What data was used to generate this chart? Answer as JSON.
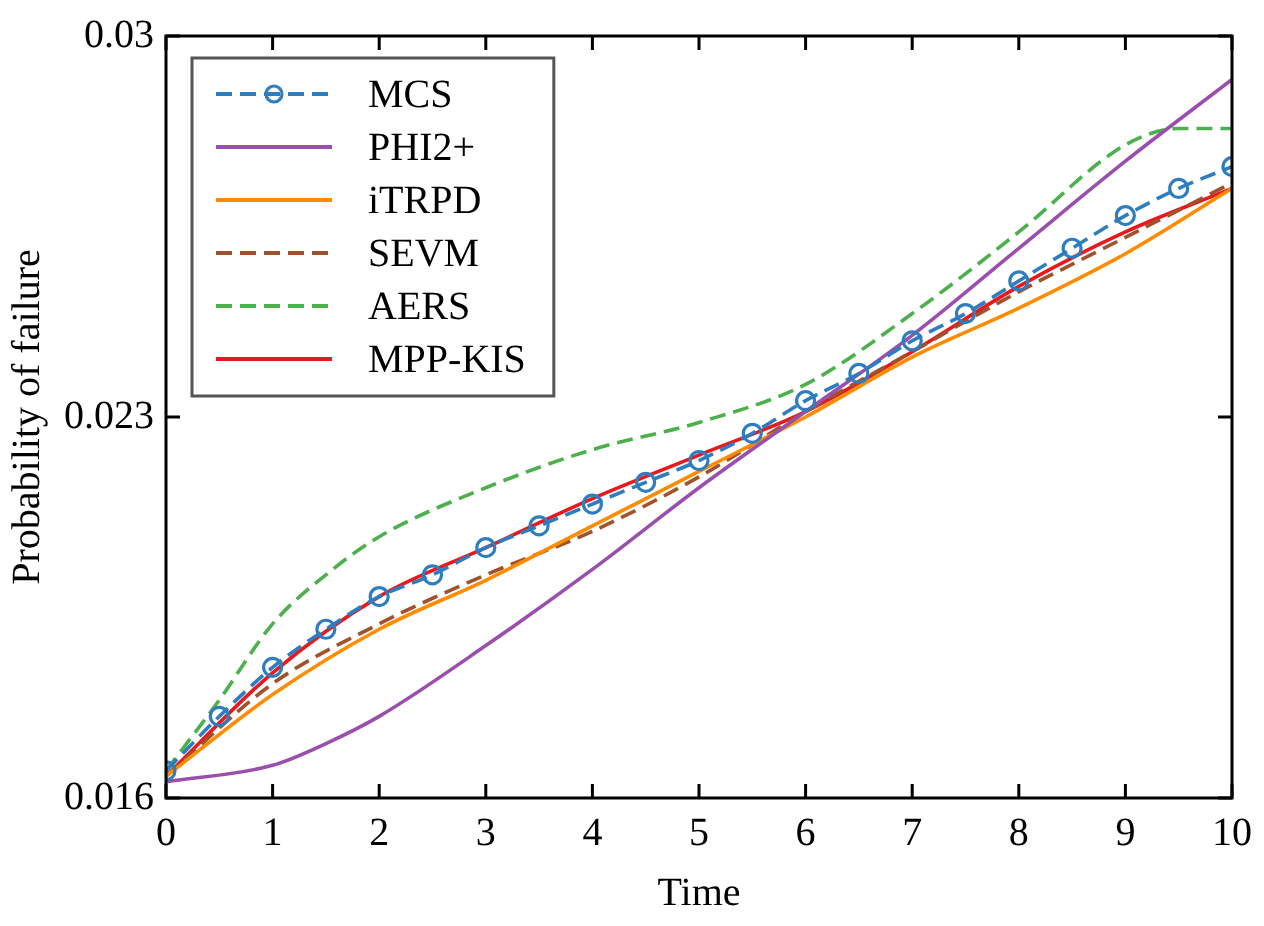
{
  "chart_data": {
    "type": "line",
    "xlabel": "Time",
    "ylabel": "Probability of failure",
    "xlim": [
      0,
      10
    ],
    "xticks": [
      0,
      1,
      2,
      3,
      4,
      5,
      6,
      7,
      8,
      9,
      10
    ],
    "ylim": [
      0.016,
      0.03
    ],
    "yticks": [
      0.016,
      0.023,
      0.03
    ],
    "grid": false,
    "legend": "top left",
    "series": [
      {
        "name": "MCS",
        "color": "#2e7ebf",
        "line_style": "dashed",
        "marker": "circle",
        "x": [
          0,
          0.5,
          1,
          1.5,
          2,
          2.5,
          3,
          3.5,
          4,
          4.5,
          5,
          5.5,
          6,
          6.5,
          7,
          7.5,
          8,
          8.5,
          9,
          9.5,
          10
        ],
        "values": [
          0.0165,
          0.0175,
          0.0184,
          0.0191,
          0.0197,
          0.0201,
          0.0206,
          0.021,
          0.0214,
          0.0218,
          0.0222,
          0.0227,
          0.0233,
          0.0238,
          0.0244,
          0.0249,
          0.0255,
          0.0261,
          0.0267,
          0.0272,
          0.0276
        ]
      },
      {
        "name": "PHI2+",
        "color": "#9b4fad",
        "line_style": "solid",
        "marker": "none",
        "x": [
          0,
          1,
          1.5,
          2,
          3,
          4,
          5,
          6,
          7,
          8,
          9,
          10
        ],
        "values": [
          0.0163,
          0.0166,
          0.017,
          0.0175,
          0.0188,
          0.0202,
          0.0217,
          0.0231,
          0.0245,
          0.0261,
          0.0277,
          0.0292
        ]
      },
      {
        "name": "iTRPD",
        "color": "#ff8c00",
        "line_style": "solid",
        "marker": "none",
        "x": [
          0,
          1,
          2,
          3,
          4,
          5,
          6,
          7,
          8,
          9,
          10
        ],
        "values": [
          0.0164,
          0.0179,
          0.0191,
          0.02,
          0.021,
          0.022,
          0.023,
          0.0241,
          0.025,
          0.026,
          0.0272
        ]
      },
      {
        "name": "SEVM",
        "color": "#a0522d",
        "line_style": "dashed",
        "marker": "none",
        "x": [
          0,
          1,
          2,
          3,
          4,
          5,
          6,
          7,
          8,
          9,
          10
        ],
        "values": [
          0.0164,
          0.0181,
          0.0192,
          0.0201,
          0.0209,
          0.0219,
          0.0231,
          0.0242,
          0.0253,
          0.0263,
          0.0273
        ]
      },
      {
        "name": "AERS",
        "color": "#4cb04c",
        "line_style": "dashed",
        "marker": "none",
        "x": [
          0,
          0.5,
          1,
          1.5,
          2,
          3,
          4,
          5,
          6,
          7,
          8,
          9,
          9.5,
          10
        ],
        "values": [
          0.0165,
          0.0178,
          0.0192,
          0.0201,
          0.0208,
          0.0217,
          0.0224,
          0.0229,
          0.0236,
          0.0249,
          0.0264,
          0.028,
          0.0283,
          0.0283
        ]
      },
      {
        "name": "MPP-KIS",
        "color": "#e8181d",
        "line_style": "solid",
        "marker": "none",
        "x": [
          0,
          1,
          2,
          3,
          4,
          5,
          6,
          7,
          8,
          9,
          10
        ],
        "values": [
          0.0164,
          0.0183,
          0.0197,
          0.0206,
          0.0215,
          0.0223,
          0.0231,
          0.0242,
          0.0254,
          0.0264,
          0.0272
        ]
      }
    ]
  }
}
